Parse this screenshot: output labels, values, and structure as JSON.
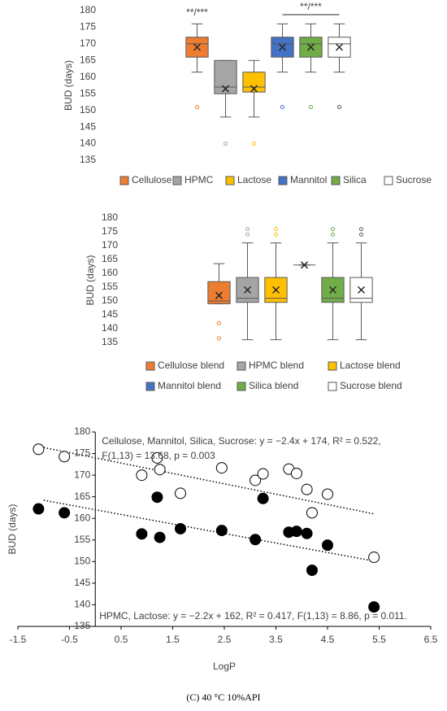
{
  "chart_data": [
    {
      "type": "boxplot",
      "y_label": "BUD (days)",
      "ylim": [
        135,
        180
      ],
      "yticks": [
        135,
        140,
        145,
        150,
        155,
        160,
        165,
        170,
        175,
        180
      ],
      "categories": [
        "Cellulose",
        "HPMC",
        "Lactose",
        "Mannitol",
        "Silica",
        "Sucrose"
      ],
      "colors": [
        "#ed7d31",
        "#a5a5a5",
        "#ffc000",
        "#4472c4",
        "#70ad47",
        "#ffffff"
      ],
      "boxes": [
        {
          "min": 161.5,
          "q1": 166,
          "median": 170,
          "q3": 172,
          "max": 176,
          "mean": 169,
          "outliers": [
            151
          ]
        },
        {
          "min": 148,
          "q1": 155,
          "median": 157,
          "q3": 165,
          "max": 165,
          "mean": 156.5,
          "outliers": [
            140
          ]
        },
        {
          "min": 148,
          "q1": 155.5,
          "median": 157,
          "q3": 161.5,
          "max": 165,
          "mean": 156.5,
          "outliers": [
            140
          ]
        },
        {
          "min": 161.5,
          "q1": 166,
          "median": 170,
          "q3": 172,
          "max": 176,
          "mean": 169,
          "outliers": [
            151
          ]
        },
        {
          "min": 161.5,
          "q1": 166,
          "median": 170,
          "q3": 172,
          "max": 176,
          "mean": 169,
          "outliers": [
            151
          ]
        },
        {
          "min": 161.5,
          "q1": 166,
          "median": 170,
          "q3": 172,
          "max": 176,
          "mean": 169,
          "outliers": [
            151
          ]
        }
      ],
      "annotations": [
        "**/***",
        "**/***"
      ]
    },
    {
      "type": "boxplot",
      "y_label": "BUD (days)",
      "ylim": [
        135,
        180
      ],
      "yticks": [
        135,
        140,
        145,
        150,
        155,
        160,
        165,
        170,
        175,
        180
      ],
      "categories": [
        "Cellulose blend",
        "HPMC blend",
        "Lactose blend",
        "Mannitol blend",
        "Silica blend",
        "Sucrose blend"
      ],
      "colors": [
        "#ed7d31",
        "#a5a5a5",
        "#ffc000",
        "#4472c4",
        "#70ad47",
        "#ffffff"
      ],
      "boxes": [
        {
          "min": 149,
          "q1": 149,
          "median": 150,
          "q3": 157,
          "max": 163.5,
          "mean": 152,
          "outliers": [
            142,
            136.5
          ]
        },
        {
          "min": 136,
          "q1": 149.5,
          "median": 151,
          "q3": 158.5,
          "max": 171,
          "mean": 154,
          "outliers": [
            174,
            176
          ]
        },
        {
          "min": 136,
          "q1": 149.5,
          "median": 151,
          "q3": 158.5,
          "max": 171,
          "mean": 154,
          "outliers": [
            174,
            176
          ]
        },
        {
          "min": 163,
          "q1": 163,
          "median": 163,
          "q3": 163,
          "max": 163,
          "mean": 163,
          "outliers": []
        },
        {
          "min": 136,
          "q1": 149.5,
          "median": 151,
          "q3": 158.5,
          "max": 171,
          "mean": 154,
          "outliers": [
            174,
            176
          ]
        },
        {
          "min": 136,
          "q1": 149.5,
          "median": 151,
          "q3": 158.5,
          "max": 171,
          "mean": 154,
          "outliers": [
            174,
            176
          ]
        }
      ]
    },
    {
      "type": "scatter",
      "x_label": "LogP",
      "y_label": "BUD (days)",
      "caption": "(C) 40 °C 10%API",
      "xlim": [
        -1.5,
        6.5
      ],
      "xticks": [
        -1.5,
        -0.5,
        0.5,
        1.5,
        2.5,
        3.5,
        4.5,
        5.5,
        6.5
      ],
      "ylim": [
        135,
        180
      ],
      "yticks": [
        135,
        140,
        145,
        150,
        155,
        160,
        165,
        170,
        175,
        180
      ],
      "series": [
        {
          "fill": "#ffffff",
          "x": [
            -1.1,
            -0.6,
            0.9,
            1.2,
            1.25,
            1.65,
            2.45,
            3.1,
            3.25,
            3.75,
            3.9,
            4.1,
            4.2,
            4.5,
            5.4
          ],
          "y": [
            176,
            174.3,
            170,
            174,
            171.3,
            165.8,
            171.7,
            168.8,
            170.3,
            171.4,
            170.4,
            166.7,
            161.3,
            165.6,
            151
          ]
        },
        {
          "fill": "#000000",
          "x": [
            -1.1,
            -0.6,
            0.9,
            1.2,
            1.25,
            1.65,
            2.45,
            3.1,
            3.25,
            3.75,
            3.9,
            4.1,
            4.2,
            4.5,
            5.4
          ],
          "y": [
            162.2,
            161.3,
            156.4,
            164.9,
            155.6,
            157.6,
            157.2,
            155.1,
            164.6,
            156.8,
            157,
            156.5,
            148,
            153.8,
            139.5
          ]
        }
      ],
      "trendlines": [
        {
          "slope": -2.4,
          "intercept": 174,
          "x_range": [
            -1.0,
            5.4
          ]
        },
        {
          "slope": -2.2,
          "intercept": 162,
          "x_range": [
            -1.0,
            5.4
          ]
        }
      ],
      "annotations": [
        "Cellulose, Mannitol, Silica, Sucrose: y = −2.4x + 174, R² = 0.522,",
        "F(1,13) = 13.68, p = 0.003",
        "HPMC, Lactose: y = −2.2x + 162, R² = 0.417, F(1,13) = 8.86, p = 0.011."
      ]
    }
  ]
}
